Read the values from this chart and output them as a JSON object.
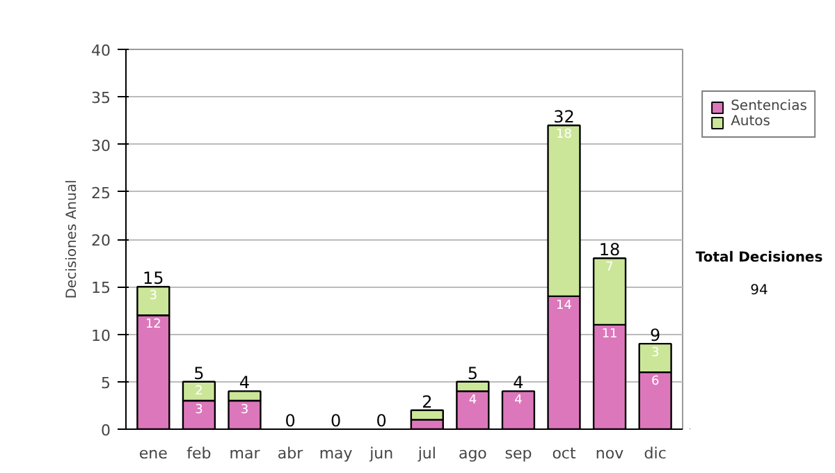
{
  "chart_data": {
    "type": "bar",
    "stacked": true,
    "ylabel": "Decisiones Anual",
    "categories": [
      "ene",
      "feb",
      "mar",
      "abr",
      "may",
      "jun",
      "jul",
      "ago",
      "sep",
      "oct",
      "nov",
      "dic"
    ],
    "series": [
      {
        "name": "Sentencias",
        "color": "#dd77bb",
        "values": [
          12,
          3,
          3,
          0,
          0,
          0,
          1,
          4,
          4,
          14,
          11,
          6
        ],
        "value_labels": [
          "12",
          "3",
          "3",
          null,
          null,
          null,
          null,
          "4",
          "4",
          "14",
          "11",
          "6"
        ]
      },
      {
        "name": "Autos",
        "color": "#cce699",
        "values": [
          3,
          2,
          1,
          0,
          0,
          0,
          1,
          1,
          0,
          18,
          7,
          3
        ],
        "value_labels": [
          "3",
          "2",
          null,
          null,
          null,
          null,
          null,
          null,
          null,
          "18",
          "7",
          "3"
        ]
      }
    ],
    "totals": [
      "15",
      "5",
      "4",
      "0",
      "0",
      "0",
      "2",
      "5",
      "4",
      "32",
      "18",
      "9"
    ],
    "ylim": [
      0,
      40
    ],
    "yticks": [
      0,
      5,
      10,
      15,
      20,
      25,
      30,
      35,
      40
    ],
    "grid": "y",
    "legend": "right",
    "annotations": [
      "Total Decisiones",
      "94"
    ]
  }
}
